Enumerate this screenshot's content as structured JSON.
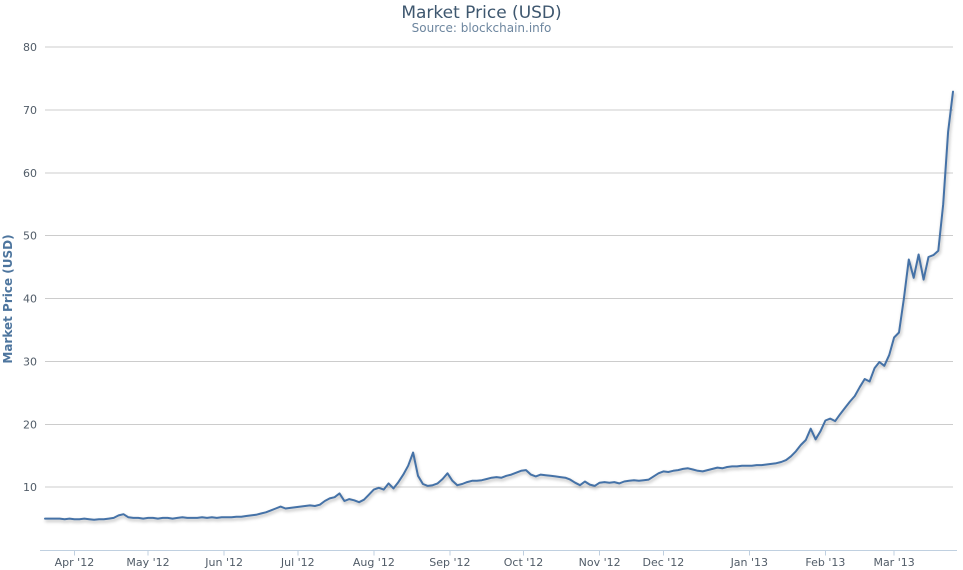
{
  "chart_data": {
    "type": "line",
    "title": "Market Price (USD)",
    "subtitle": "Source: blockchain.info",
    "xlabel": "",
    "ylabel": "Market Price (USD)",
    "ylim": [
      0,
      80
    ],
    "y_ticks": [
      10,
      20,
      30,
      40,
      50,
      60,
      70,
      80
    ],
    "grid": true,
    "legend": false,
    "x_ticks": [
      {
        "label": "Apr '12",
        "day": 12
      },
      {
        "label": "May '12",
        "day": 42
      },
      {
        "label": "Jun '12",
        "day": 73
      },
      {
        "label": "Jul '12",
        "day": 103
      },
      {
        "label": "Aug '12",
        "day": 134
      },
      {
        "label": "Sep '12",
        "day": 165
      },
      {
        "label": "Oct '12",
        "day": 195
      },
      {
        "label": "Nov '12",
        "day": 226
      },
      {
        "label": "Dec '12",
        "day": 252
      },
      {
        "label": "Jan '13",
        "day": 287
      },
      {
        "label": "Feb '13",
        "day": 318
      },
      {
        "label": "Mar '13",
        "day": 346
      }
    ],
    "span_days": 370,
    "series": [
      {
        "name": "Market Price (USD)",
        "start_date": "2012-03-20",
        "end_date": "2013-03-25",
        "step_days": 2,
        "values": [
          5.0,
          5.0,
          5.0,
          5.0,
          4.9,
          5.0,
          4.9,
          4.9,
          5.0,
          4.9,
          4.8,
          4.9,
          4.9,
          5.0,
          5.1,
          5.5,
          5.7,
          5.2,
          5.1,
          5.1,
          5.0,
          5.1,
          5.1,
          5.0,
          5.1,
          5.1,
          5.0,
          5.1,
          5.2,
          5.1,
          5.1,
          5.1,
          5.2,
          5.1,
          5.2,
          5.1,
          5.2,
          5.2,
          5.2,
          5.3,
          5.3,
          5.4,
          5.5,
          5.6,
          5.8,
          6.0,
          6.3,
          6.6,
          6.9,
          6.6,
          6.7,
          6.8,
          6.9,
          7.0,
          7.1,
          7.0,
          7.2,
          7.8,
          8.2,
          8.4,
          9.0,
          7.8,
          8.1,
          7.9,
          7.6,
          8.0,
          8.8,
          9.6,
          9.9,
          9.6,
          10.6,
          9.8,
          10.8,
          12.0,
          13.4,
          15.5,
          11.8,
          10.5,
          10.2,
          10.3,
          10.6,
          11.3,
          12.2,
          11.0,
          10.3,
          10.5,
          10.8,
          11.0,
          11.0,
          11.1,
          11.3,
          11.5,
          11.6,
          11.5,
          11.8,
          12.0,
          12.3,
          12.6,
          12.7,
          12.0,
          11.7,
          12.0,
          11.9,
          11.8,
          11.7,
          11.6,
          11.5,
          11.2,
          10.7,
          10.3,
          10.9,
          10.4,
          10.2,
          10.7,
          10.8,
          10.7,
          10.8,
          10.6,
          10.9,
          11.0,
          11.1,
          11.0,
          11.1,
          11.2,
          11.7,
          12.2,
          12.5,
          12.4,
          12.6,
          12.7,
          12.9,
          13.0,
          12.8,
          12.6,
          12.5,
          12.7,
          12.9,
          13.1,
          13.0,
          13.2,
          13.3,
          13.3,
          13.4,
          13.4,
          13.4,
          13.5,
          13.5,
          13.6,
          13.7,
          13.8,
          14.0,
          14.3,
          14.9,
          15.7,
          16.7,
          17.5,
          19.3,
          17.6,
          18.9,
          20.6,
          20.9,
          20.5,
          21.6,
          22.6,
          23.6,
          24.5,
          25.9,
          27.2,
          26.8,
          28.9,
          29.9,
          29.3,
          31.0,
          33.8,
          34.6,
          40.0,
          46.2,
          43.3,
          47.0,
          43.0,
          46.6,
          46.9,
          47.6,
          55.0,
          66.5,
          72.9
        ]
      }
    ],
    "colors": {
      "line": "#4572A7",
      "grid": "#CCCCCC",
      "axis": "#C0D0E0",
      "title": "#3E576F",
      "subtitle": "#6D869F",
      "y_axis_title": "#4D759E",
      "tick_label": "#515C68"
    }
  }
}
